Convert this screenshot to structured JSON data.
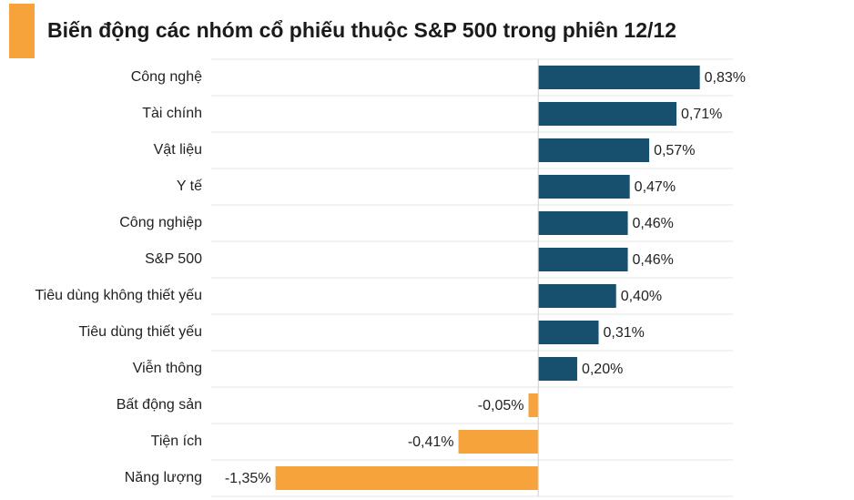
{
  "chart_data": {
    "type": "barh",
    "title": "Biến động các nhóm cổ phiếu thuộc S&P 500 trong phiên 12/12",
    "categories": [
      "Công nghệ",
      "Tài chính",
      "Vật liệu",
      "Y tế",
      "Công nghiệp",
      "S&P 500",
      "Tiêu dùng không thiết yếu",
      "Tiêu dùng thiết yếu",
      "Viễn thông",
      "Bất động sản",
      "Tiện ích",
      "Năng lượng"
    ],
    "values": [
      0.83,
      0.71,
      0.57,
      0.47,
      0.46,
      0.46,
      0.4,
      0.31,
      0.2,
      -0.05,
      -0.41,
      -1.35
    ],
    "value_labels": [
      "0,83%",
      "0,71%",
      "0,57%",
      "0,47%",
      "0,46%",
      "0,46%",
      "0,40%",
      "0,31%",
      "0,20%",
      "-0,05%",
      "-0,41%",
      "-1,35%"
    ],
    "color": "#17506e",
    "negative_color": "#f5a33a",
    "xlim": [
      -1.68,
      1.0
    ],
    "grid": true
  }
}
